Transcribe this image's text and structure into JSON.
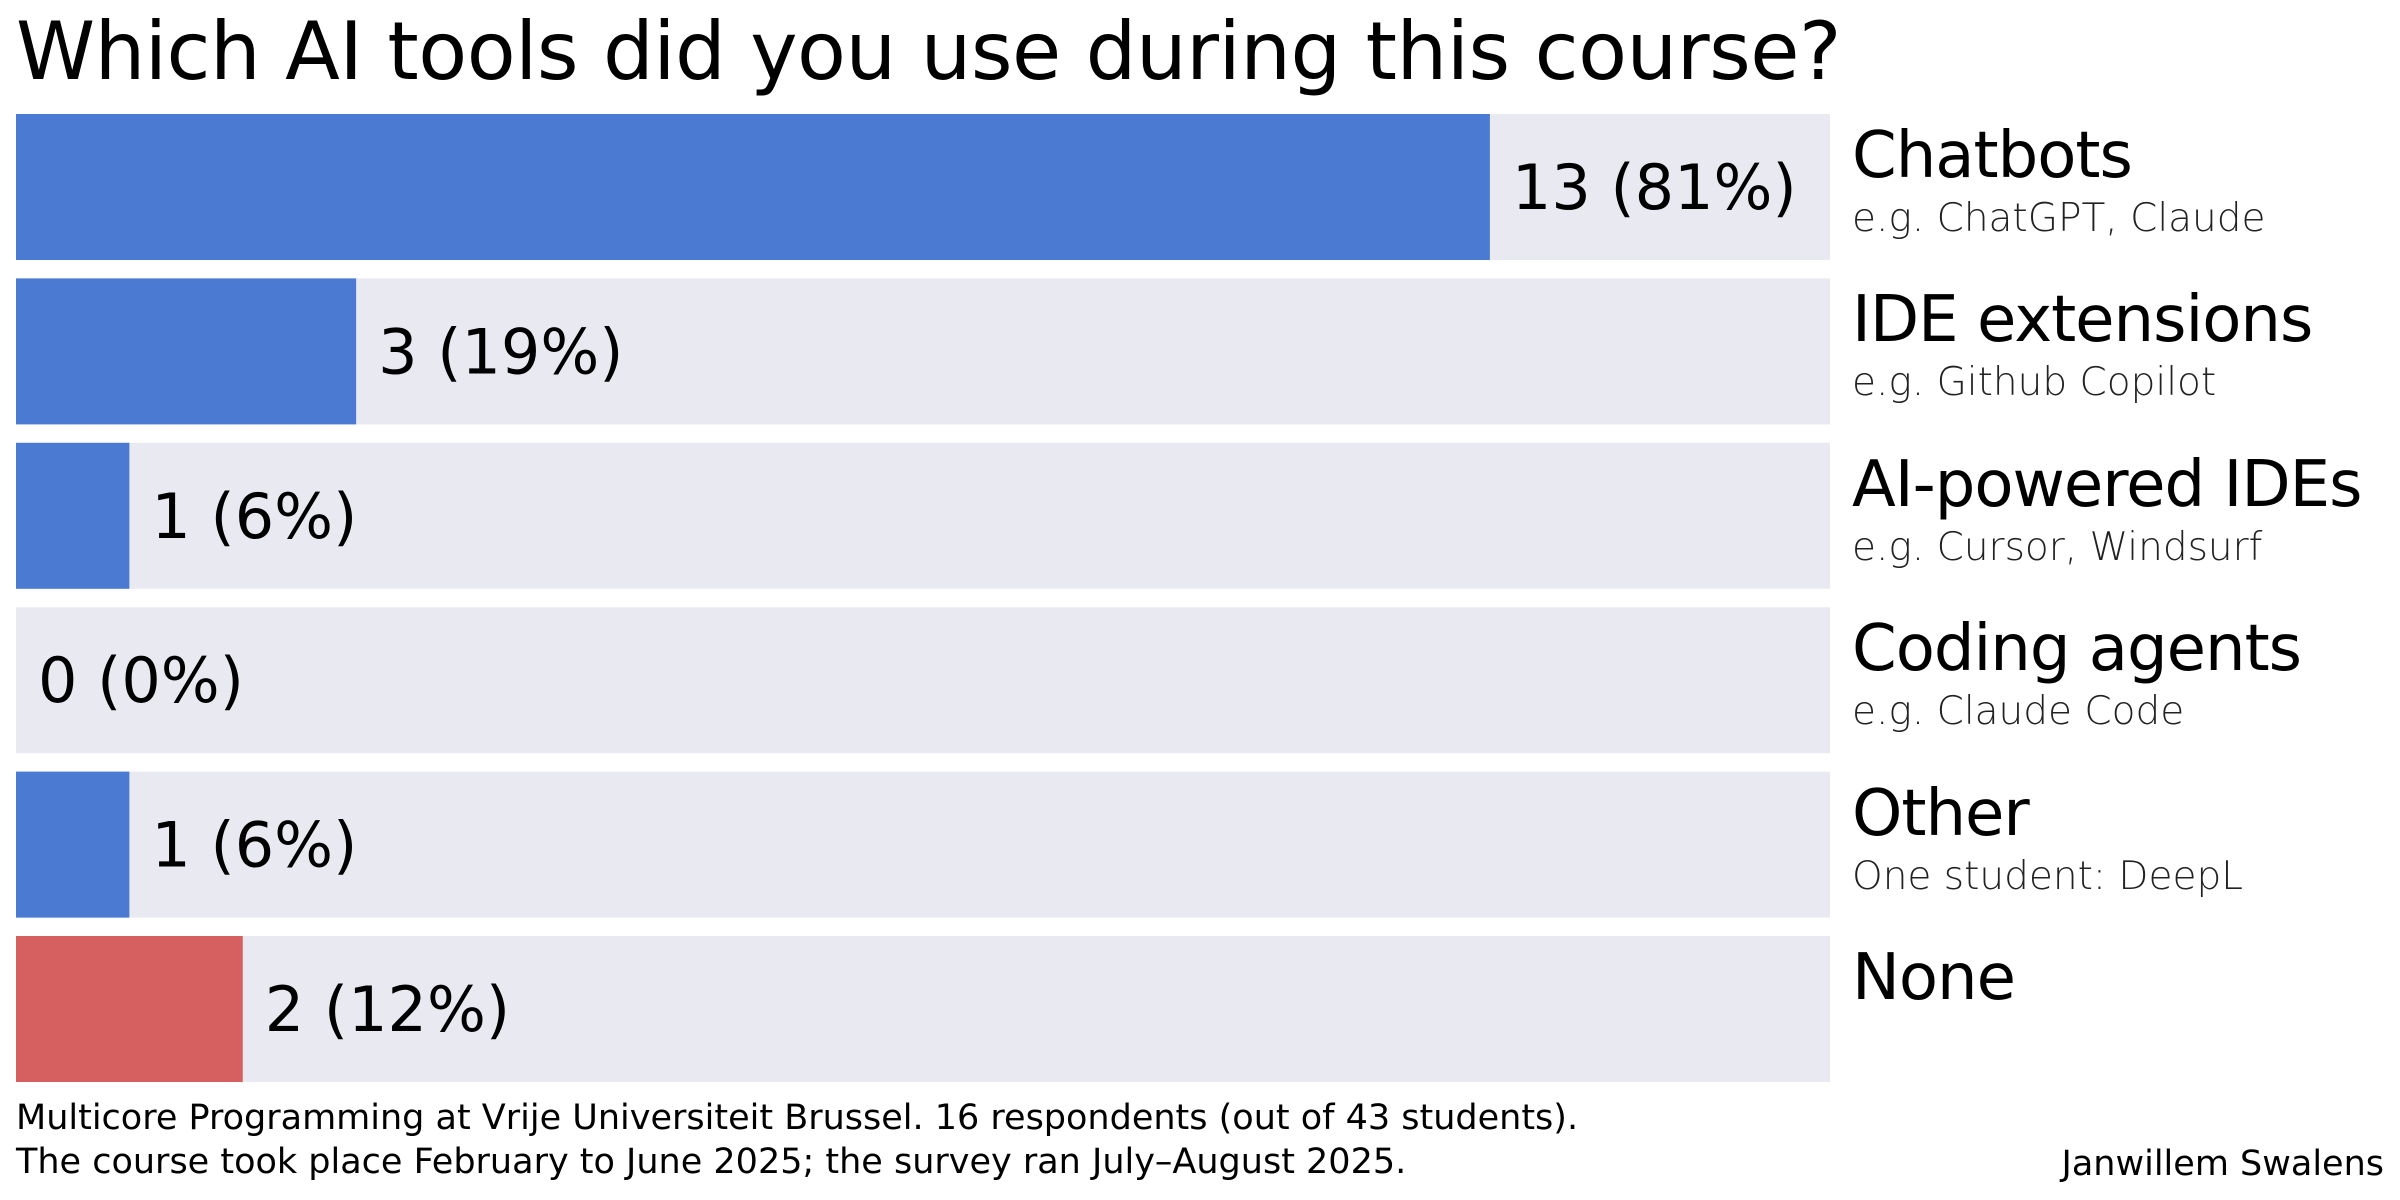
{
  "chart_data": {
    "type": "bar",
    "orientation": "horizontal",
    "title": "Which AI tools did you use during this course?",
    "categories": [
      {
        "name": "Chatbots",
        "description": "e.g. ChatGPT, Claude"
      },
      {
        "name": "IDE extensions",
        "description": "e.g. Github Copilot"
      },
      {
        "name": "AI-powered IDEs",
        "description": "e.g. Cursor, Windsurf"
      },
      {
        "name": "Coding agents",
        "description": "e.g. Claude Code"
      },
      {
        "name": "Other",
        "description": "One student: DeepL"
      },
      {
        "name": "None",
        "description": ""
      }
    ],
    "values": [
      13,
      3,
      1,
      0,
      1,
      2
    ],
    "value_labels": [
      "13 (81%)",
      "3 (19%)",
      "1 (6%)",
      "0 (0%)",
      "1 (6%)",
      "2 (12%)"
    ],
    "xlim": [
      0,
      16
    ],
    "colors": {
      "bar": "#4a7ad2",
      "bar_none": "#d65f5f",
      "track": "#e9e9f2"
    },
    "grid": false,
    "legend": "none"
  },
  "footer": {
    "note": "Multicore Programming at Vrije Universiteit Brussel. 16 respondents (out of 43 students).\nThe course took place February to June 2025; the survey ran July–August 2025.",
    "author": "Janwillem Swalens"
  }
}
